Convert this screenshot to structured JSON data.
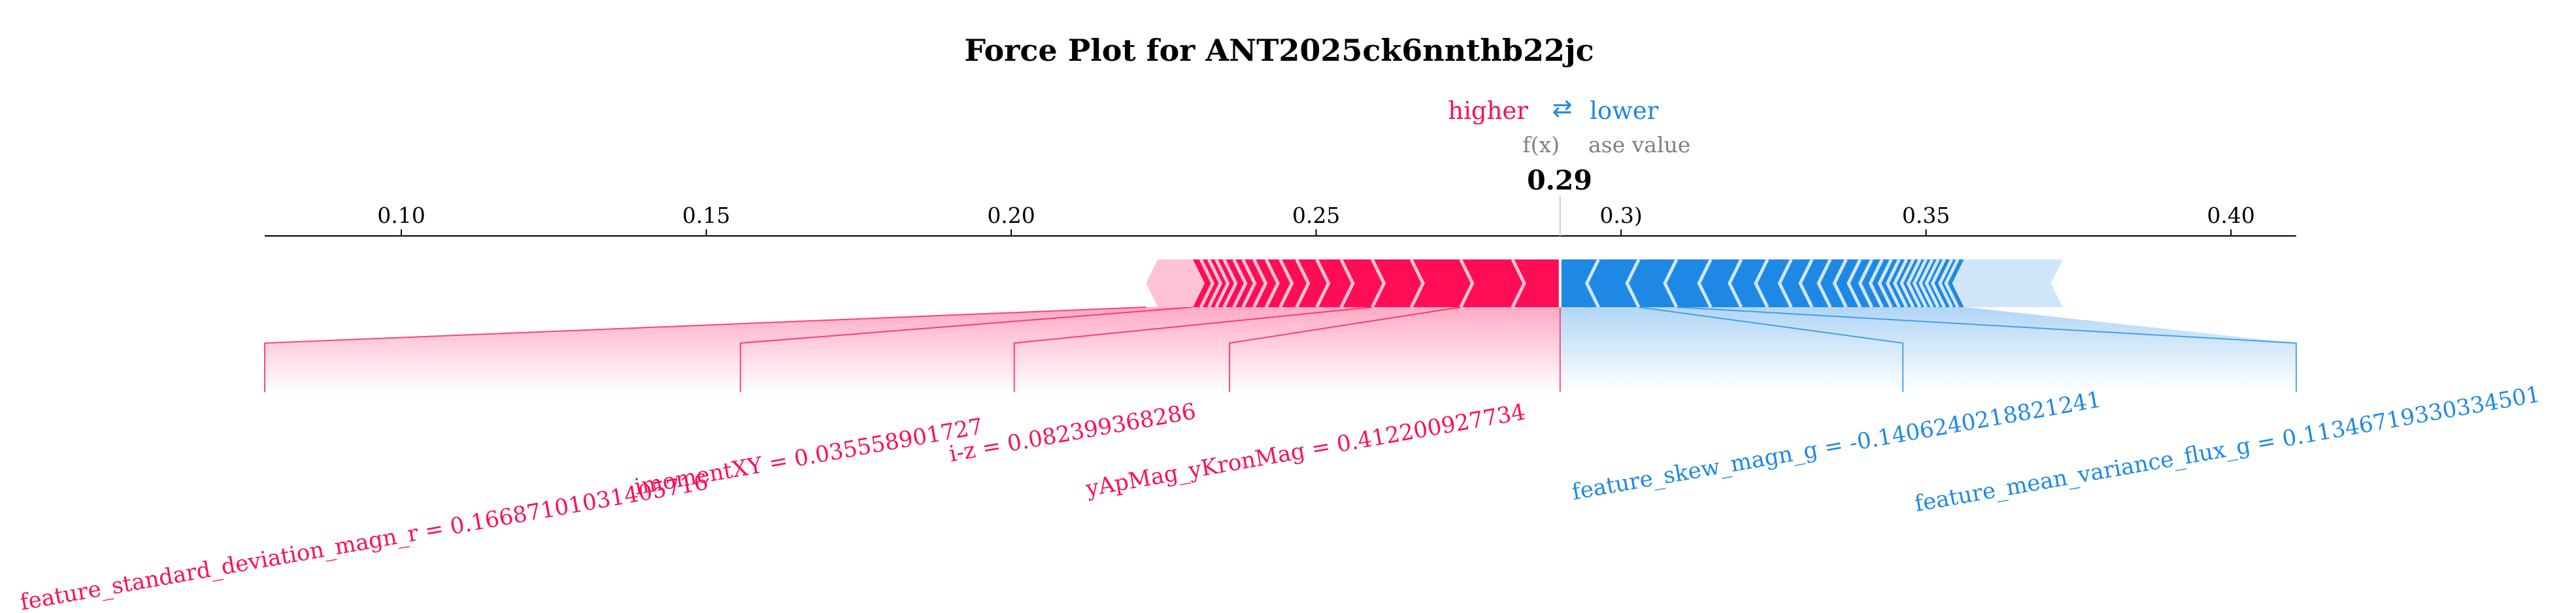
{
  "chart_data": {
    "type": "force_plot",
    "title": "Force Plot for ANT2025ck6nnthb22jc",
    "legend": {
      "higher_label": "higher",
      "lower_label": "lower",
      "arrow_glyph": "⇄",
      "fx_label": "f(x)",
      "base_value_label": "ase value"
    },
    "output_value": 0.29,
    "output_value_label": "0.29",
    "base_value": 0.3,
    "xlim": [
      0.0776,
      0.4107
    ],
    "ticks": [
      {
        "value": 0.1,
        "label": "0.10"
      },
      {
        "value": 0.15,
        "label": "0.15"
      },
      {
        "value": 0.2,
        "label": "0.20"
      },
      {
        "value": 0.25,
        "label": "0.25"
      },
      {
        "value": 0.3,
        "label": "0.3)"
      },
      {
        "value": 0.35,
        "label": "0.35"
      },
      {
        "value": 0.4,
        "label": "0.40"
      }
    ],
    "positive_range": [
      0.2221,
      0.29
    ],
    "negative_range": [
      0.29,
      0.3724
    ],
    "positive_boundaries": [
      0.2298,
      0.2311,
      0.2324,
      0.2336,
      0.2349,
      0.2365,
      0.238,
      0.2398,
      0.2418,
      0.2441,
      0.2468,
      0.2501,
      0.2541,
      0.2592,
      0.2656,
      0.2737,
      0.2822
    ],
    "negative_boundaries": [
      0.2963,
      0.3029,
      0.3091,
      0.3147,
      0.3197,
      0.324,
      0.3279,
      0.3313,
      0.3343,
      0.3369,
      0.3392,
      0.3411,
      0.3428,
      0.3443,
      0.3456,
      0.3468,
      0.3479,
      0.349,
      0.35,
      0.351,
      0.352,
      0.353,
      0.3542,
      0.3552,
      0.3565
    ],
    "positive_features": [
      {
        "label": "feature_standard_deviation_magn_r = 0.16687101031405716",
        "segment": [
          0.2221,
          0.2298
        ],
        "label_at": 0.0776
      },
      {
        "label": "imomentXY = 0.035558901727",
        "segment": [
          0.2298,
          0.2592
        ],
        "label_at": 0.1556
      },
      {
        "label": "i-z = 0.082399368286",
        "segment": [
          0.2592,
          0.2737
        ],
        "label_at": 0.2005
      },
      {
        "label": "yApMag_yKronMag = 0.412200927734",
        "segment": [
          0.2737,
          0.29
        ],
        "label_at": 0.2358
      },
      {
        "label": "",
        "segment": [
          0.2822,
          0.29
        ],
        "label_at": 0.29
      }
    ],
    "negative_features": [
      {
        "label": "feature_skew_magn_g = -0.1406240218821241",
        "segment": [
          0.29,
          0.3029
        ],
        "label_at": 0.3462
      },
      {
        "label": "feature_mean_variance_flux_g = 0.11346719330334501",
        "segment": [
          0.3029,
          0.3091
        ],
        "label_at": 0.4107
      }
    ],
    "colors": {
      "positive": "#ff0d57",
      "negative": "#1e88e5",
      "positive_light": "#ffc3d5",
      "negative_light": "#d1e6fa",
      "text_gray": "#808080"
    }
  }
}
